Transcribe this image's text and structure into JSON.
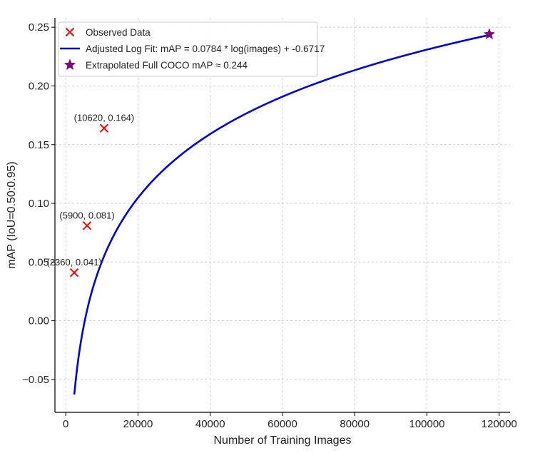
{
  "chart_data": {
    "type": "scatter",
    "xlabel": "Number of Training Images",
    "ylabel": "mAP (IoU=0.50:0.95)",
    "xlim": [
      -3000,
      123000
    ],
    "ylim": [
      -0.078,
      0.258
    ],
    "xticks": [
      0,
      20000,
      40000,
      60000,
      80000,
      100000,
      120000
    ],
    "yticks": [
      -0.05,
      0.0,
      0.05,
      0.1,
      0.15,
      0.2,
      0.25
    ],
    "xtick_labels": [
      "0",
      "20000",
      "40000",
      "60000",
      "80000",
      "100000",
      "120000"
    ],
    "ytick_labels": [
      "−0.05",
      "0.00",
      "0.05",
      "0.10",
      "0.15",
      "0.20",
      "0.25"
    ],
    "grid": true,
    "legend_position": "upper-left",
    "series": [
      {
        "name": "Observed Data",
        "kind": "scatter",
        "marker": "x",
        "color": "#ff0000",
        "x": [
          2360,
          5900,
          10620
        ],
        "y": [
          0.041,
          0.081,
          0.164
        ],
        "labels": [
          "(2360, 0.041)",
          "(5900, 0.081)",
          "(10620, 0.164)"
        ]
      },
      {
        "name": "Adjusted Log Fit: mAP = 0.0784 * log(images) + -0.6717",
        "kind": "line",
        "color": "#0000dd",
        "a": 0.0784,
        "b": -0.6717,
        "x_range": [
          2360,
          117266
        ]
      },
      {
        "name": "Extrapolated Full COCO mAP ≈ 0.244",
        "kind": "scatter",
        "marker": "star",
        "color": "#800080",
        "x": [
          117266
        ],
        "y": [
          0.244
        ]
      }
    ]
  }
}
